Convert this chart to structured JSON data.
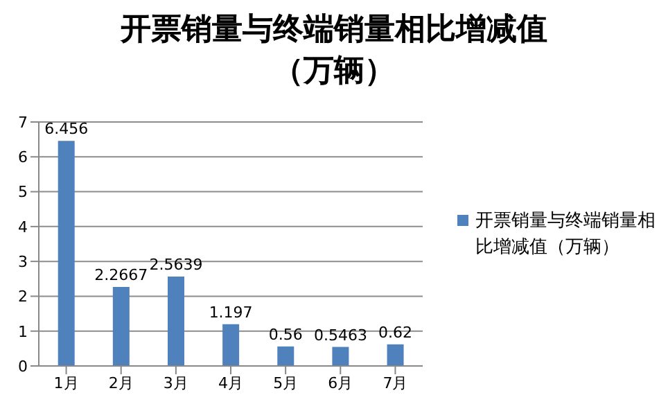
{
  "chart_data": {
    "type": "bar",
    "title": "开票销量与终端销量相比增减值（万辆）",
    "categories": [
      "1月",
      "2月",
      "3月",
      "4月",
      "5月",
      "6月",
      "7月"
    ],
    "series": [
      {
        "name": "开票销量与终端销量相比增减值（万辆）",
        "color": "#4f81bd",
        "values": [
          6.456,
          2.2667,
          2.5639,
          1.197,
          0.56,
          0.5463,
          0.62
        ]
      }
    ],
    "ylim": [
      0,
      7
    ],
    "yticks": [
      0,
      1,
      2,
      3,
      4,
      5,
      6,
      7
    ],
    "grid": "y",
    "legend": "right",
    "data_labels": true
  }
}
